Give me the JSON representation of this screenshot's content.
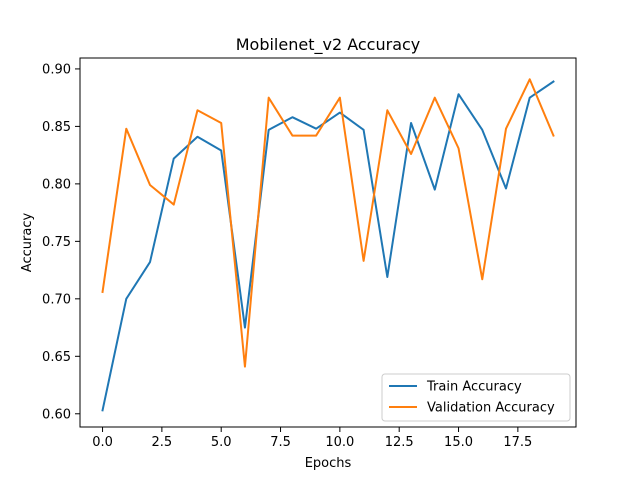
{
  "chart_data": {
    "type": "line",
    "title": "Mobilenet_v2 Accuracy",
    "xlabel": "Epochs",
    "ylabel": "Accuracy",
    "xlim": [
      -0.95,
      19.95
    ],
    "ylim": [
      0.5885,
      0.9095
    ],
    "x_ticks": [
      0.0,
      2.5,
      5.0,
      7.5,
      10.0,
      12.5,
      15.0,
      17.5
    ],
    "x_tick_labels": [
      "0.0",
      "2.5",
      "5.0",
      "7.5",
      "10.0",
      "12.5",
      "15.0",
      "17.5"
    ],
    "y_ticks": [
      0.6,
      0.65,
      0.7,
      0.75,
      0.8,
      0.85,
      0.9
    ],
    "y_tick_labels": [
      "0.60",
      "0.65",
      "0.70",
      "0.75",
      "0.80",
      "0.85",
      "0.90"
    ],
    "grid": false,
    "legend_position": "lower-right",
    "x": [
      0,
      1,
      2,
      3,
      4,
      5,
      6,
      7,
      8,
      9,
      10,
      11,
      12,
      13,
      14,
      15,
      16,
      17,
      18,
      19
    ],
    "series": [
      {
        "name": "Train Accuracy",
        "color": "#1f77b4",
        "values": [
          0.603,
          0.7,
          0.732,
          0.822,
          0.841,
          0.829,
          0.675,
          0.847,
          0.858,
          0.848,
          0.862,
          0.847,
          0.719,
          0.853,
          0.795,
          0.878,
          0.847,
          0.796,
          0.875,
          0.889
        ]
      },
      {
        "name": "Validation Accuracy",
        "color": "#ff7f0e",
        "values": [
          0.706,
          0.848,
          0.799,
          0.782,
          0.864,
          0.853,
          0.641,
          0.875,
          0.842,
          0.842,
          0.875,
          0.733,
          0.864,
          0.826,
          0.875,
          0.831,
          0.717,
          0.848,
          0.891,
          0.842
        ]
      }
    ]
  }
}
